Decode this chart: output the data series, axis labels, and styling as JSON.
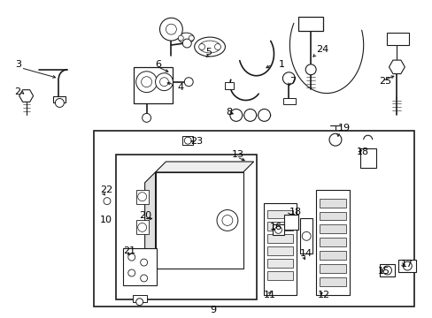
{
  "bg_color": "#ffffff",
  "line_color": "#1a1a1a",
  "fig_width": 4.89,
  "fig_height": 3.6,
  "dpi": 100,
  "font_size": 8,
  "font_size_small": 7
}
